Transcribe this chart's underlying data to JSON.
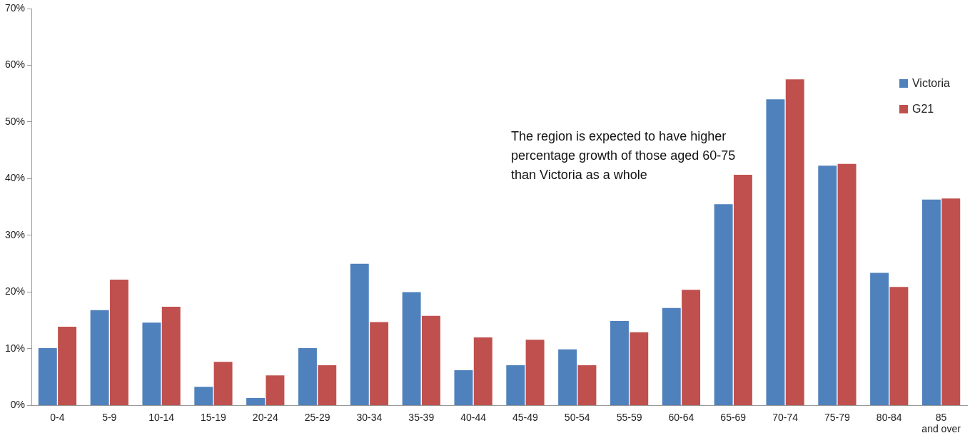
{
  "chart_data": {
    "type": "bar",
    "categories": [
      "0-4",
      "5-9",
      "10-14",
      "15-19",
      "20-24",
      "25-29",
      "30-34",
      "35-39",
      "40-44",
      "45-49",
      "50-54",
      "55-59",
      "60-64",
      "65-69",
      "70-74",
      "75-79",
      "80-84",
      "85 and over"
    ],
    "series": [
      {
        "name": "Victoria",
        "color": "#4f81bd",
        "values": [
          10.1,
          16.8,
          14.6,
          3.3,
          1.3,
          10.1,
          25.0,
          20.0,
          6.2,
          7.1,
          9.9,
          14.9,
          17.2,
          35.5,
          54.0,
          42.3,
          23.4,
          36.3
        ]
      },
      {
        "name": "G21",
        "color": "#c0504d",
        "values": [
          13.9,
          22.2,
          17.4,
          7.7,
          5.3,
          7.1,
          14.7,
          15.8,
          12.0,
          11.6,
          7.1,
          12.9,
          20.4,
          40.7,
          57.5,
          42.6,
          20.9,
          36.5
        ]
      }
    ],
    "ylim": [
      0,
      70
    ],
    "yticks": [
      {
        "value": 0,
        "label": "0%"
      },
      {
        "value": 10,
        "label": "10%"
      },
      {
        "value": 20,
        "label": "20%"
      },
      {
        "value": 30,
        "label": "30%"
      },
      {
        "value": 40,
        "label": "40%"
      },
      {
        "value": 50,
        "label": "50%"
      },
      {
        "value": 60,
        "label": "60%"
      },
      {
        "value": 70,
        "label": "70%"
      }
    ],
    "grid": false,
    "legend": "top right",
    "annotations": [
      "The region is expected to have higher percentage growth of those aged 60-75 than Victoria as a whole"
    ]
  }
}
